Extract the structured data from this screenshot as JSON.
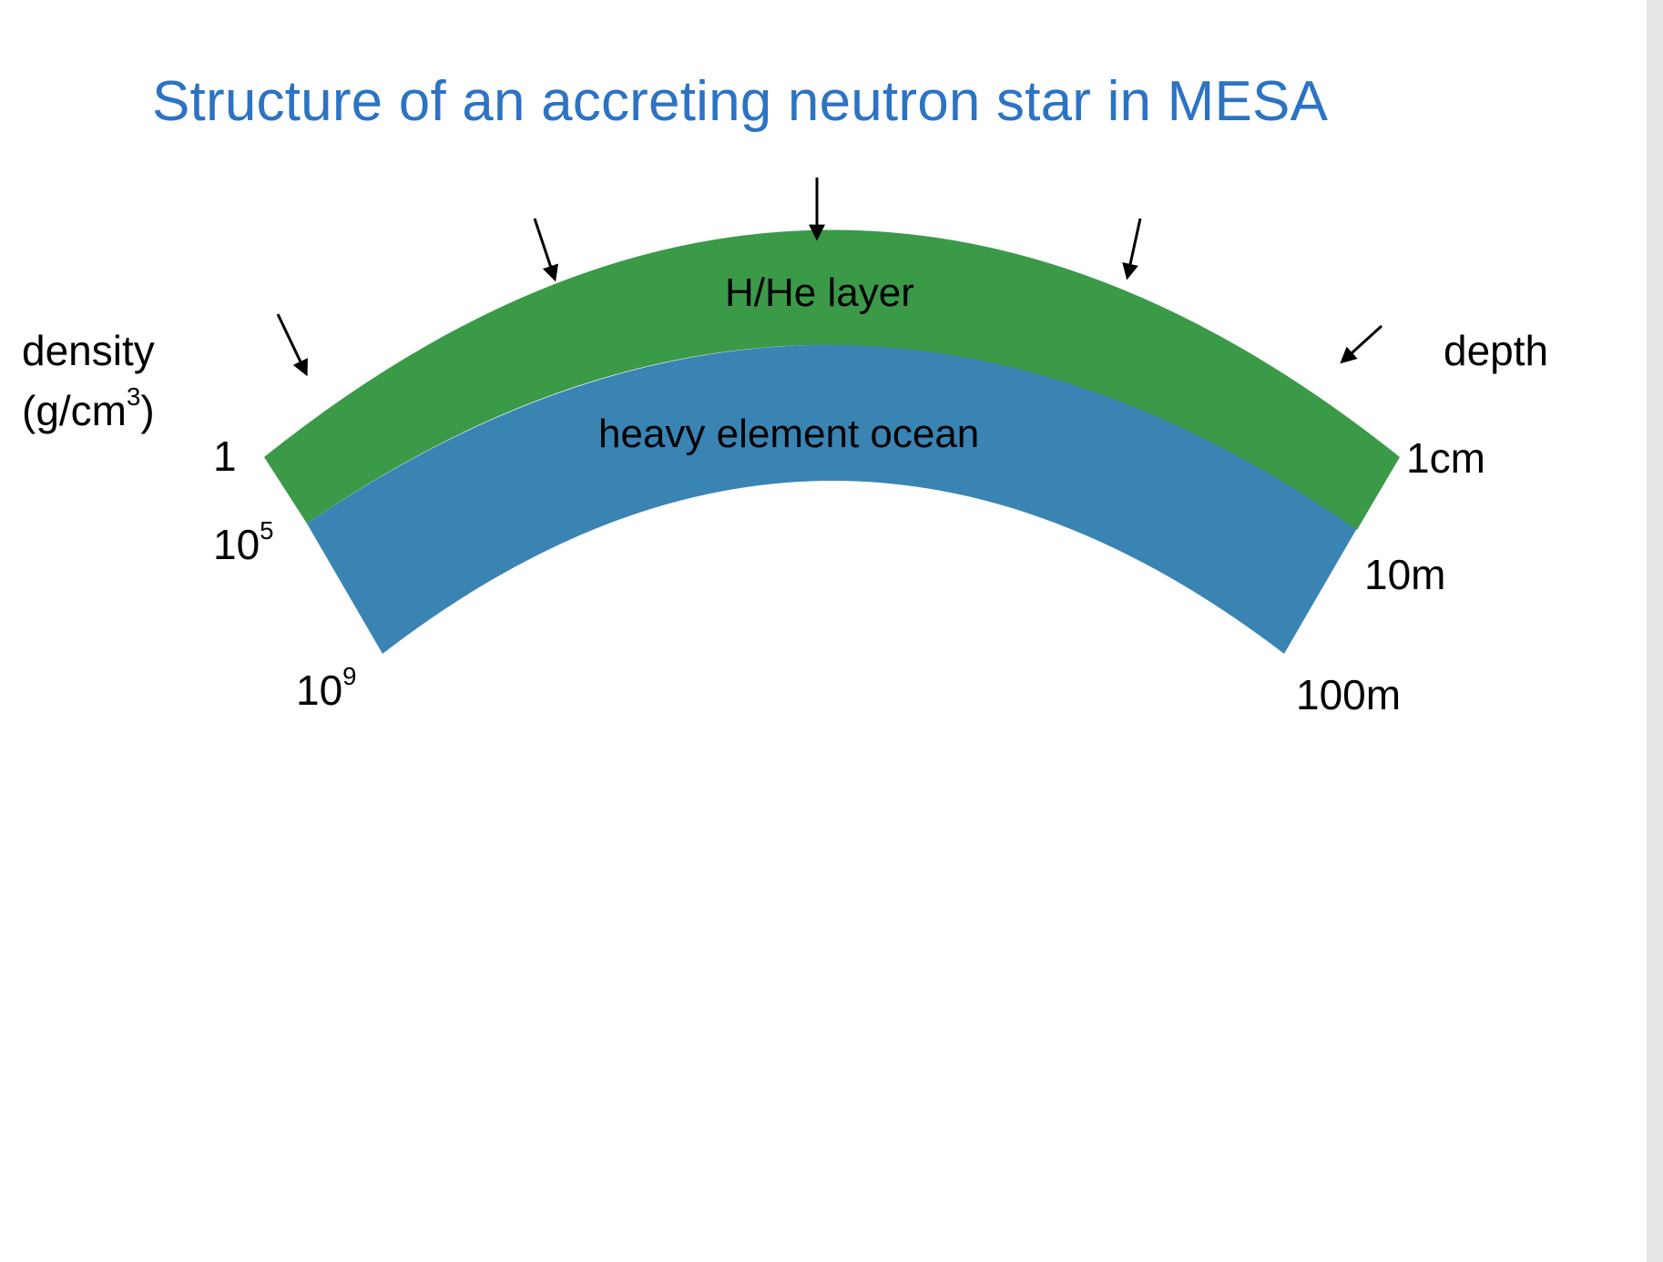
{
  "title": "Structure of an accreting neutron star in MESA",
  "layers": {
    "top": {
      "name": "H/He layer",
      "color": "#3a9a48"
    },
    "bottom": {
      "name": "heavy element ocean",
      "color": "#3a84b4"
    }
  },
  "left_axis": {
    "label_line1": "density",
    "label_line2_prefix": "(g/cm",
    "label_line2_sup": "3",
    "label_line2_suffix": ")",
    "ticks": [
      {
        "base": "1",
        "sup": ""
      },
      {
        "base": "10",
        "sup": "5"
      },
      {
        "base": "10",
        "sup": "9"
      }
    ]
  },
  "right_axis": {
    "label": "depth",
    "ticks": [
      "1cm",
      "10m",
      "100m"
    ]
  },
  "arrow_icon": "down-arrow-icon"
}
